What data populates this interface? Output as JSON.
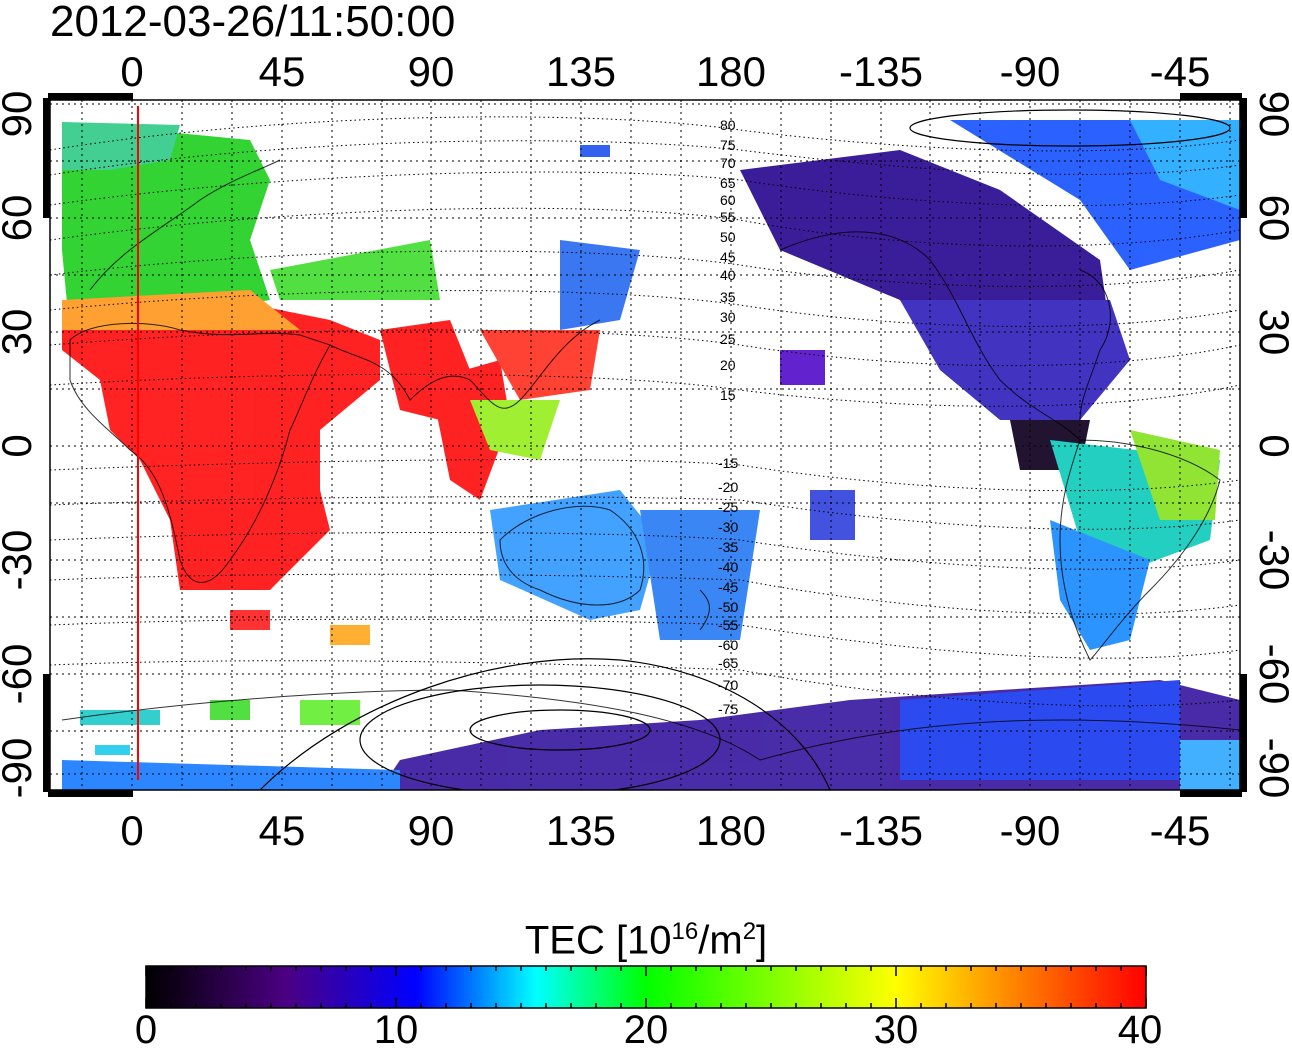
{
  "timestamp": "2012-03-26/11:50:00",
  "longitude_ticks": [
    "0",
    "45",
    "90",
    "135",
    "180",
    "-135",
    "-90",
    "-45"
  ],
  "latitude_ticks": [
    "90",
    "60",
    "30",
    "0",
    "-30",
    "-60",
    "-90"
  ],
  "contour_labels_north": [
    "80",
    "75",
    "70",
    "65",
    "60",
    "55",
    "50",
    "45",
    "40",
    "35",
    "30",
    "25",
    "20",
    "15"
  ],
  "contour_labels_south": [
    "-15",
    "-20",
    "-25",
    "-30",
    "-35",
    "-40",
    "-45",
    "-50",
    "-55",
    "-60",
    "-65",
    "-70",
    "-75"
  ],
  "colorbar": {
    "title_prefix": "TEC  [10",
    "title_exp1": "16",
    "title_mid": "/m",
    "title_exp2": "2",
    "title_suffix": "]",
    "labels": [
      "0",
      "10",
      "20",
      "30",
      "40"
    ],
    "colors": [
      "#000000",
      "#4b0082",
      "#0000ff",
      "#00ffff",
      "#00ff00",
      "#ffff00",
      "#ff8c00",
      "#ff0000"
    ]
  },
  "marker": {
    "longitude": 2,
    "color": "#ff0000"
  }
}
